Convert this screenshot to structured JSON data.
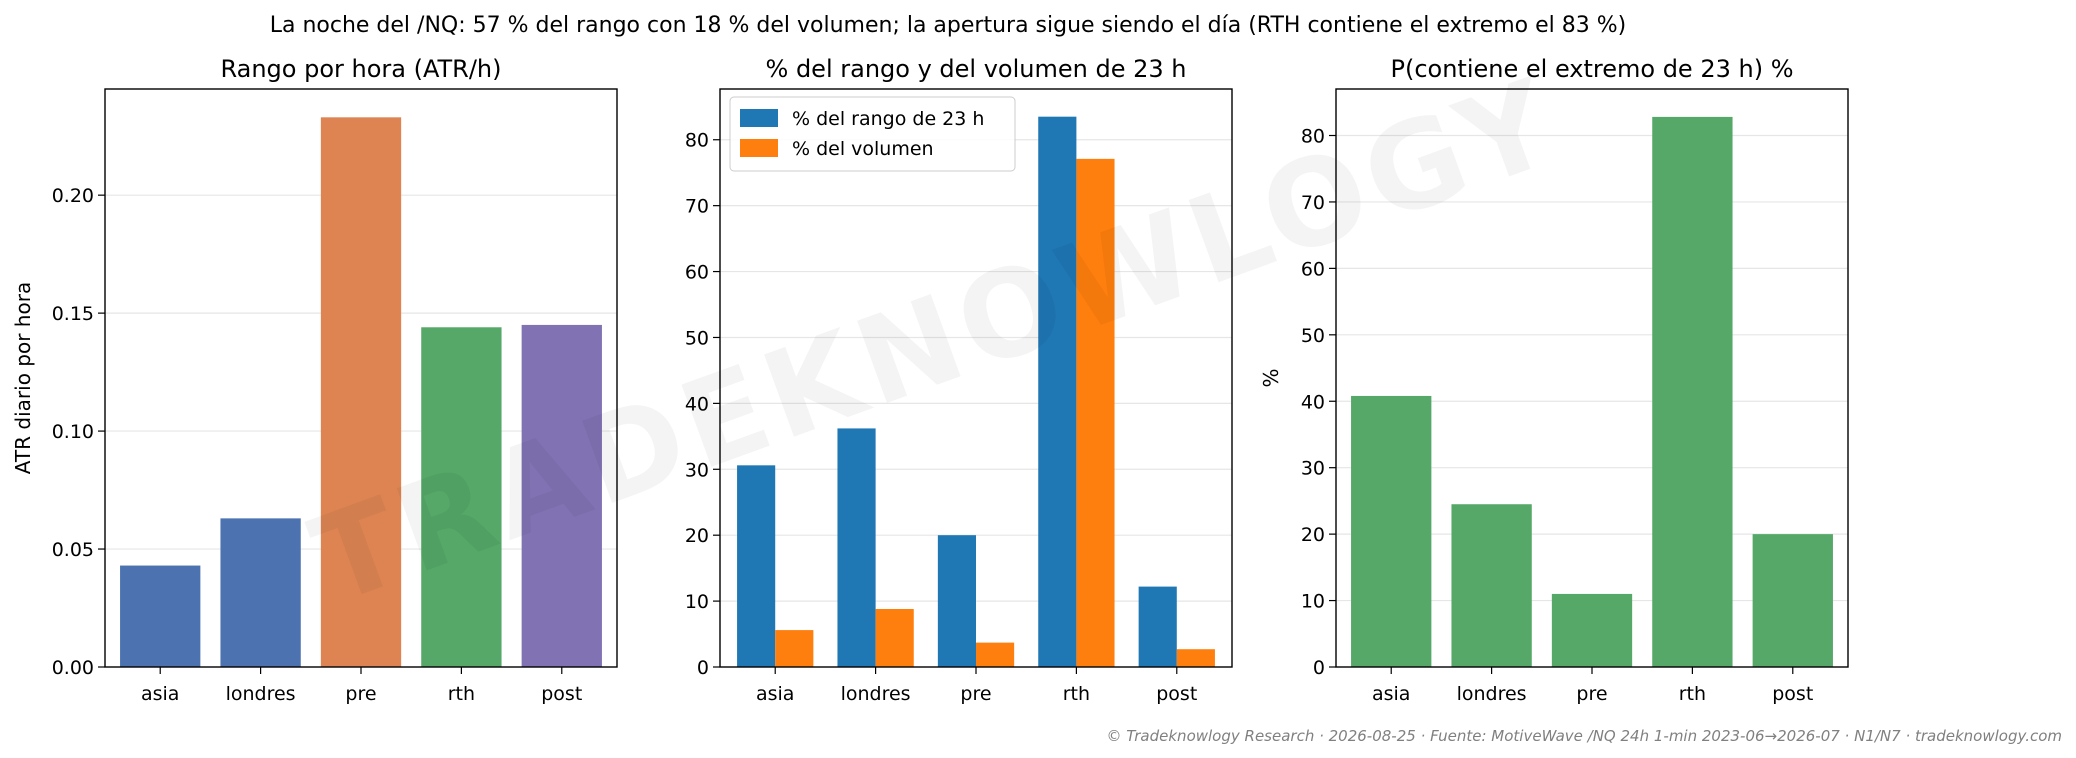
{
  "suptitle": "La noche del /NQ: 57 % del rango con 18 % del volumen; la apertura sigue siendo el día (RTH contiene el extremo el 83 %)",
  "watermark": "TRADEKNOWLOGY",
  "footer": "© Tradeknowlogy Research   ·   2026-08-25   ·   Fuente: MotiveWave /NQ 24h 1-min 2023-06→2026-07 · N1/N7   ·   tradeknowlogy.com",
  "colors": {
    "asia": "#4c72b0",
    "londres": "#dd8452",
    "pre": "#dd8452",
    "rth": "#55a868",
    "post": "#8172b3",
    "rango": "#1f77b4",
    "volumen": "#ff7f0e",
    "extremo": "#55a868",
    "grid": "#e6e6e6"
  },
  "chart_data": [
    {
      "type": "bar",
      "title": "Rango por hora (ATR/h)",
      "xlabel": "",
      "ylabel": "ATR diario por hora",
      "categories": [
        "asia",
        "londres",
        "pre",
        "rth",
        "post"
      ],
      "values": [
        0.043,
        0.063,
        0.233,
        0.144,
        0.145
      ],
      "bar_colors": [
        "#4c72b0",
        "#4c72b0",
        "#dd8452",
        "#55a868",
        "#8172b3"
      ],
      "yticks": [
        "0.00",
        "0.05",
        "0.10",
        "0.15",
        "0.20"
      ],
      "ylim": [
        0,
        0.245
      ],
      "grid": "y"
    },
    {
      "type": "bar",
      "title": "% del rango y del volumen de 23 h",
      "xlabel": "",
      "ylabel": "",
      "categories": [
        "asia",
        "londres",
        "pre",
        "rth",
        "post"
      ],
      "series": [
        {
          "name": "% del rango de 23 h",
          "values": [
            30.6,
            36.2,
            20.0,
            83.5,
            12.2
          ],
          "color": "#1f77b4"
        },
        {
          "name": "% del volumen",
          "values": [
            5.6,
            8.8,
            3.7,
            77.1,
            2.7
          ],
          "color": "#ff7f0e"
        }
      ],
      "yticks": [
        "0",
        "10",
        "20",
        "30",
        "40",
        "50",
        "60",
        "70",
        "80"
      ],
      "ylim": [
        0,
        87.7
      ],
      "legend": "top-left",
      "grid": "y"
    },
    {
      "type": "bar",
      "title": "P(contiene el extremo de 23 h) %",
      "xlabel": "",
      "ylabel": "%",
      "categories": [
        "asia",
        "londres",
        "pre",
        "rth",
        "post"
      ],
      "values": [
        40.8,
        24.5,
        11.0,
        82.8,
        20.0
      ],
      "bar_colors": [
        "#55a868",
        "#55a868",
        "#55a868",
        "#55a868",
        "#55a868"
      ],
      "yticks": [
        "0",
        "10",
        "20",
        "30",
        "40",
        "50",
        "60",
        "70",
        "80"
      ],
      "ylim": [
        0,
        87
      ],
      "grid": "y"
    }
  ]
}
